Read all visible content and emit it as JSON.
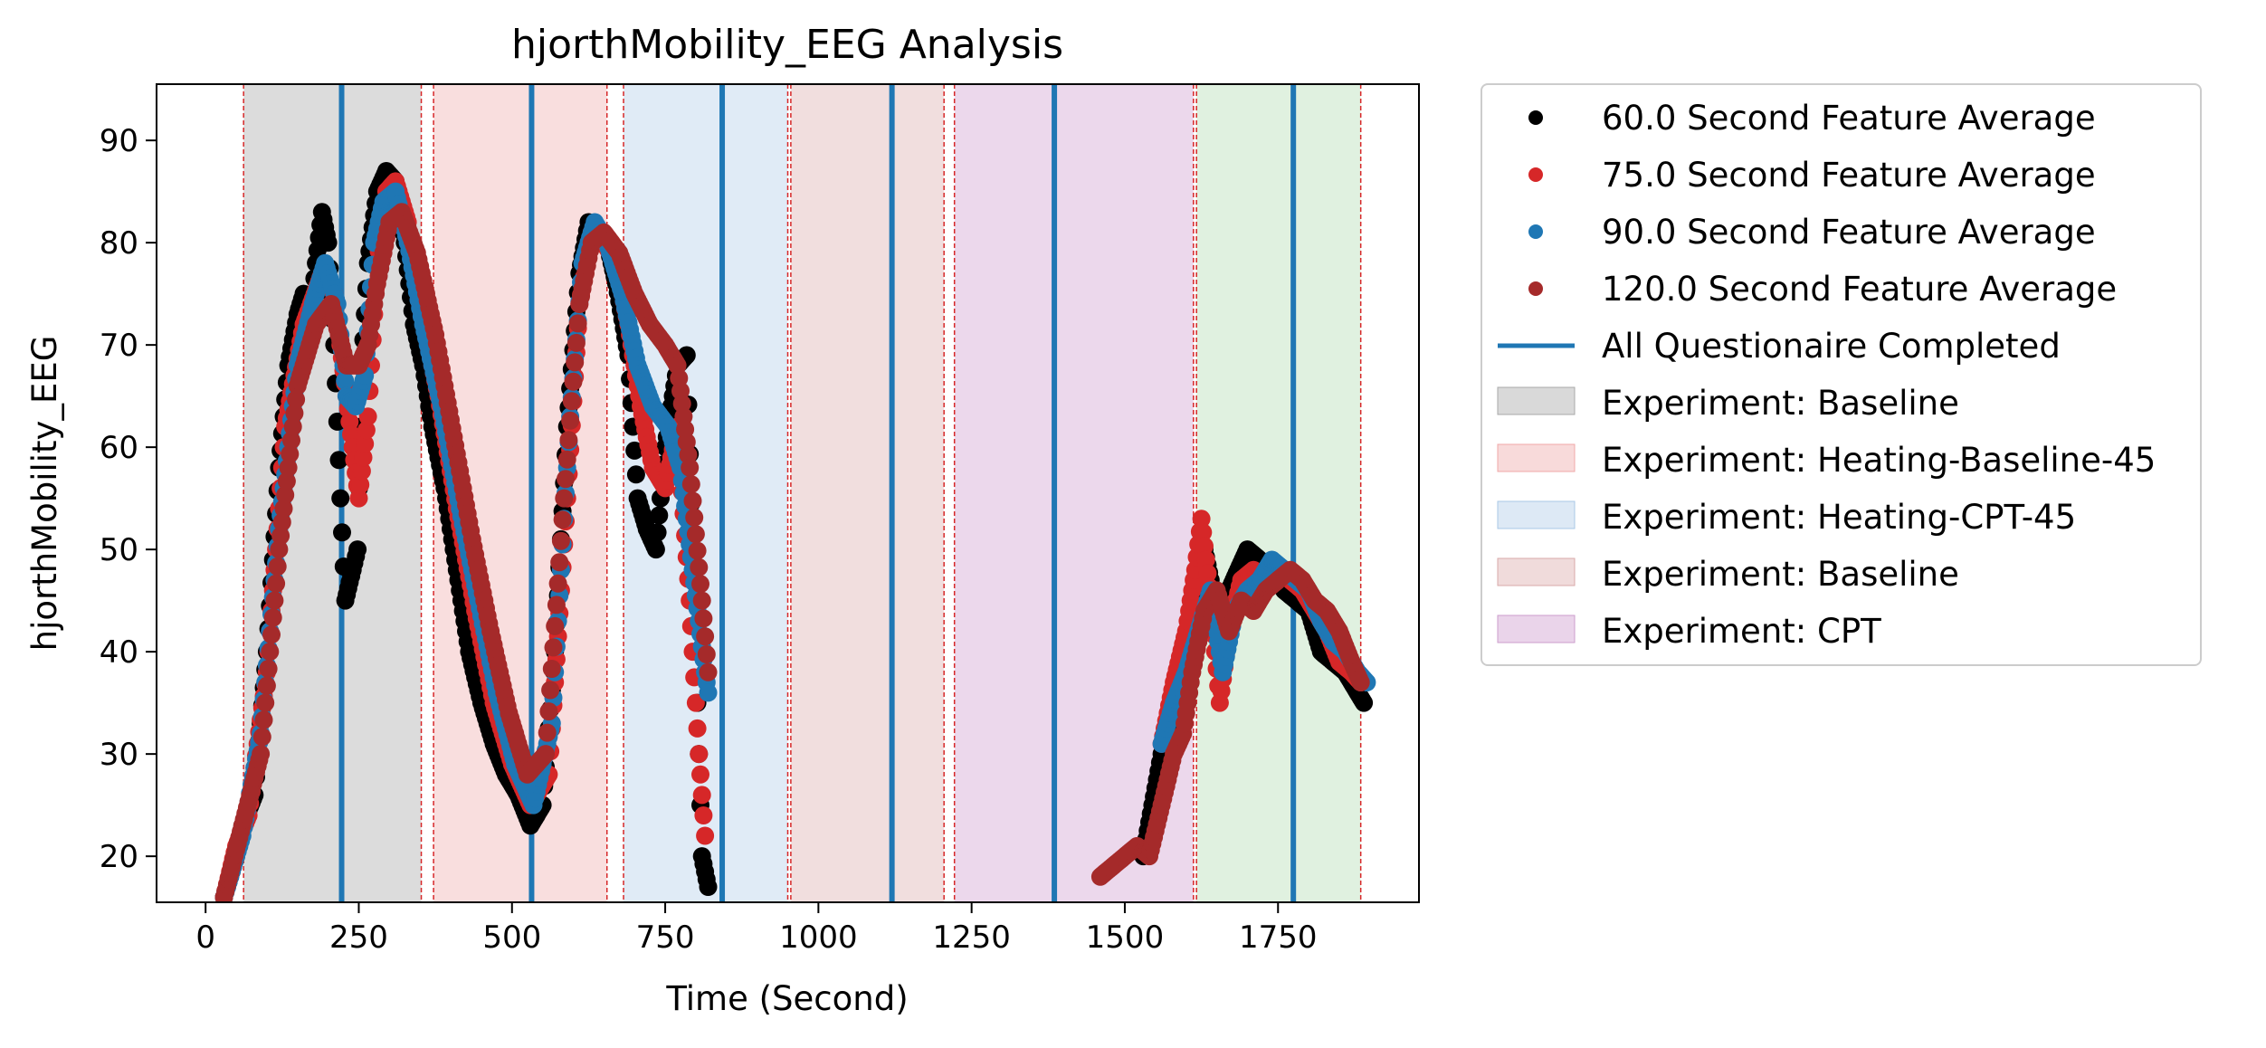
{
  "chart_data": {
    "type": "scatter",
    "title": "hjorthMobility_EEG Analysis",
    "xlabel": "Time (Second)",
    "ylabel": "hjorthMobility_EEG",
    "xlim": [
      -80,
      1980
    ],
    "ylim": [
      15.5,
      95.5
    ],
    "xticks": [
      0,
      250,
      500,
      750,
      1000,
      1250,
      1500,
      1750
    ],
    "yticks": [
      20,
      30,
      40,
      50,
      60,
      70,
      80,
      90
    ],
    "grid": false,
    "legend_position": "outside-right",
    "series": [
      {
        "name": "60.0 Second Feature Average",
        "color": "#000000",
        "segments": [
          [
            [
              30,
              16
            ],
            [
              50,
              20
            ],
            [
              60,
              23
            ],
            [
              80,
              26
            ],
            [
              100,
              40
            ],
            [
              120,
              58
            ],
            [
              135,
              68
            ],
            [
              150,
              73
            ],
            [
              160,
              75
            ],
            [
              170,
              72
            ],
            [
              180,
              78
            ],
            [
              190,
              83
            ],
            [
              200,
              80
            ],
            [
              210,
              70
            ],
            [
              220,
              55
            ],
            [
              228,
              45
            ],
            [
              240,
              48
            ],
            [
              248,
              50
            ],
            [
              255,
              68
            ],
            [
              265,
              78
            ],
            [
              280,
              85
            ],
            [
              295,
              87
            ],
            [
              310,
              86
            ],
            [
              325,
              80
            ],
            [
              340,
              72
            ],
            [
              355,
              68
            ],
            [
              370,
              62
            ],
            [
              390,
              56
            ],
            [
              410,
              48
            ],
            [
              430,
              40
            ],
            [
              450,
              35
            ],
            [
              470,
              31
            ],
            [
              490,
              28
            ],
            [
              510,
              26
            ],
            [
              530,
              23
            ],
            [
              550,
              25
            ],
            [
              570,
              40
            ],
            [
              590,
              62
            ],
            [
              610,
              77
            ],
            [
              625,
              82
            ],
            [
              640,
              81
            ],
            [
              655,
              80
            ],
            [
              670,
              76
            ],
            [
              690,
              69
            ],
            [
              705,
              55
            ],
            [
              720,
              52
            ],
            [
              735,
              50
            ],
            [
              750,
              60
            ],
            [
              770,
              68
            ],
            [
              785,
              69
            ],
            [
              800,
              40
            ],
            [
              810,
              20
            ],
            [
              820,
              17
            ]
          ],
          [
            [
              1530,
              20
            ],
            [
              1545,
              25
            ],
            [
              1560,
              30
            ],
            [
              1575,
              34
            ],
            [
              1590,
              38
            ],
            [
              1605,
              40
            ],
            [
              1615,
              45
            ],
            [
              1630,
              50
            ],
            [
              1650,
              44
            ],
            [
              1670,
              46
            ],
            [
              1685,
              48
            ],
            [
              1700,
              50
            ],
            [
              1720,
              49
            ],
            [
              1740,
              48
            ],
            [
              1760,
              46
            ],
            [
              1780,
              45
            ],
            [
              1800,
              44
            ],
            [
              1820,
              40
            ],
            [
              1840,
              39
            ],
            [
              1860,
              38
            ],
            [
              1880,
              36
            ],
            [
              1890,
              35
            ]
          ]
        ]
      },
      {
        "name": "75.0 Second Feature Average",
        "color": "#d62728",
        "segments": [
          [
            [
              30,
              16
            ],
            [
              50,
              21
            ],
            [
              70,
              24
            ],
            [
              100,
              38
            ],
            [
              130,
              62
            ],
            [
              160,
              72
            ],
            [
              190,
              77
            ],
            [
              210,
              75
            ],
            [
              230,
              65
            ],
            [
              240,
              60
            ],
            [
              250,
              55
            ],
            [
              265,
              63
            ],
            [
              280,
              78
            ],
            [
              295,
              85
            ],
            [
              310,
              86
            ],
            [
              330,
              82
            ],
            [
              350,
              74
            ],
            [
              380,
              65
            ],
            [
              410,
              54
            ],
            [
              440,
              44
            ],
            [
              470,
              35
            ],
            [
              500,
              29
            ],
            [
              530,
              25
            ],
            [
              560,
              28
            ],
            [
              590,
              55
            ],
            [
              610,
              74
            ],
            [
              630,
              81
            ],
            [
              650,
              80
            ],
            [
              670,
              78
            ],
            [
              690,
              72
            ],
            [
              710,
              64
            ],
            [
              730,
              58
            ],
            [
              750,
              56
            ],
            [
              770,
              62
            ],
            [
              790,
              45
            ],
            [
              805,
              30
            ],
            [
              815,
              22
            ]
          ],
          [
            [
              1560,
              31
            ],
            [
              1580,
              37
            ],
            [
              1600,
              42
            ],
            [
              1615,
              48
            ],
            [
              1625,
              53
            ],
            [
              1640,
              45
            ],
            [
              1655,
              35
            ],
            [
              1670,
              42
            ],
            [
              1690,
              47
            ],
            [
              1710,
              48
            ],
            [
              1730,
              47
            ],
            [
              1750,
              48
            ],
            [
              1770,
              47
            ],
            [
              1790,
              46
            ],
            [
              1810,
              44
            ],
            [
              1830,
              42
            ],
            [
              1850,
              39
            ],
            [
              1870,
              38
            ],
            [
              1885,
              37
            ]
          ]
        ]
      },
      {
        "name": "90.0 Second Feature Average",
        "color": "#1f77b4",
        "segments": [
          [
            [
              30,
              16
            ],
            [
              60,
              22
            ],
            [
              90,
              32
            ],
            [
              120,
              52
            ],
            [
              150,
              68
            ],
            [
              175,
              74
            ],
            [
              195,
              78
            ],
            [
              215,
              74
            ],
            [
              230,
              65
            ],
            [
              245,
              64
            ],
            [
              260,
              67
            ],
            [
              275,
              80
            ],
            [
              290,
              84
            ],
            [
              310,
              85
            ],
            [
              330,
              80
            ],
            [
              355,
              72
            ],
            [
              385,
              64
            ],
            [
              415,
              54
            ],
            [
              445,
              45
            ],
            [
              475,
              36
            ],
            [
              505,
              29
            ],
            [
              535,
              25
            ],
            [
              565,
              33
            ],
            [
              595,
              63
            ],
            [
              615,
              78
            ],
            [
              635,
              82
            ],
            [
              655,
              80
            ],
            [
              680,
              75
            ],
            [
              705,
              68
            ],
            [
              730,
              64
            ],
            [
              755,
              62
            ],
            [
              775,
              58
            ],
            [
              795,
              48
            ],
            [
              815,
              38
            ],
            [
              820,
              36
            ]
          ],
          [
            [
              1560,
              31
            ],
            [
              1580,
              35
            ],
            [
              1600,
              38
            ],
            [
              1620,
              42
            ],
            [
              1640,
              46
            ],
            [
              1660,
              38
            ],
            [
              1680,
              44
            ],
            [
              1700,
              46
            ],
            [
              1720,
              47
            ],
            [
              1740,
              49
            ],
            [
              1760,
              48
            ],
            [
              1780,
              47
            ],
            [
              1800,
              46
            ],
            [
              1820,
              43
            ],
            [
              1840,
              41
            ],
            [
              1860,
              40
            ],
            [
              1880,
              38
            ],
            [
              1895,
              37
            ]
          ]
        ]
      },
      {
        "name": "120.0 Second Feature Average",
        "color": "#a52a2a",
        "segments": [
          [
            [
              30,
              16
            ],
            [
              60,
              23
            ],
            [
              90,
              30
            ],
            [
              120,
              50
            ],
            [
              150,
              66
            ],
            [
              180,
              72
            ],
            [
              205,
              74
            ],
            [
              230,
              68
            ],
            [
              250,
              68
            ],
            [
              265,
              70
            ],
            [
              280,
              76
            ],
            [
              300,
              82
            ],
            [
              320,
              83
            ],
            [
              345,
              79
            ],
            [
              375,
              71
            ],
            [
              405,
              61
            ],
            [
              435,
              51
            ],
            [
              465,
              42
            ],
            [
              495,
              34
            ],
            [
              525,
              28
            ],
            [
              555,
              30
            ],
            [
              585,
              55
            ],
            [
              610,
              74
            ],
            [
              630,
              80
            ],
            [
              650,
              81
            ],
            [
              675,
              79
            ],
            [
              700,
              75
            ],
            [
              725,
              72
            ],
            [
              750,
              70
            ],
            [
              770,
              68
            ],
            [
              790,
              58
            ],
            [
              810,
              45
            ],
            [
              820,
              38
            ]
          ],
          [
            [
              1460,
              18
            ],
            [
              1480,
              19
            ],
            [
              1500,
              20
            ],
            [
              1520,
              21
            ],
            [
              1540,
              20
            ],
            [
              1560,
              25
            ],
            [
              1580,
              30
            ],
            [
              1595,
              32
            ],
            [
              1610,
              38
            ],
            [
              1630,
              44
            ],
            [
              1650,
              46
            ],
            [
              1670,
              42
            ],
            [
              1690,
              45
            ],
            [
              1710,
              44
            ],
            [
              1730,
              46
            ],
            [
              1750,
              47
            ],
            [
              1770,
              48
            ],
            [
              1790,
              47
            ],
            [
              1810,
              45
            ],
            [
              1830,
              44
            ],
            [
              1850,
              42
            ],
            [
              1870,
              39
            ],
            [
              1885,
              37
            ]
          ]
        ]
      }
    ],
    "questionnaire_line": {
      "name": "All Questionaire Completed",
      "color": "#1f77b4",
      "x": [
        222,
        532,
        843,
        1120,
        1385,
        1775
      ]
    },
    "experiment_spans": [
      {
        "label": "Experiment: Baseline",
        "start": 62,
        "end": 352,
        "color": "#bfbfbf",
        "legend": true
      },
      {
        "label": "Experiment: Heating-Baseline-45",
        "start": 372,
        "end": 655,
        "color": "#f4c2c2",
        "legend": true
      },
      {
        "label": "Experiment: Heating-CPT-45",
        "start": 682,
        "end": 950,
        "color": "#c6dbef",
        "legend": true
      },
      {
        "label": "Experiment: Baseline",
        "start": 955,
        "end": 1205,
        "color": "#e6c3c3",
        "legend": true
      },
      {
        "label": "Experiment: CPT",
        "start": 1222,
        "end": 1612,
        "color": "#dcb8dc",
        "legend": true
      },
      {
        "label": "",
        "start": 1617,
        "end": 1885,
        "color": "#c7e6c7",
        "legend": false
      }
    ],
    "boundary_lines": [
      62,
      352,
      372,
      655,
      682,
      950,
      955,
      1205,
      1222,
      1612,
      1617,
      1885
    ]
  }
}
